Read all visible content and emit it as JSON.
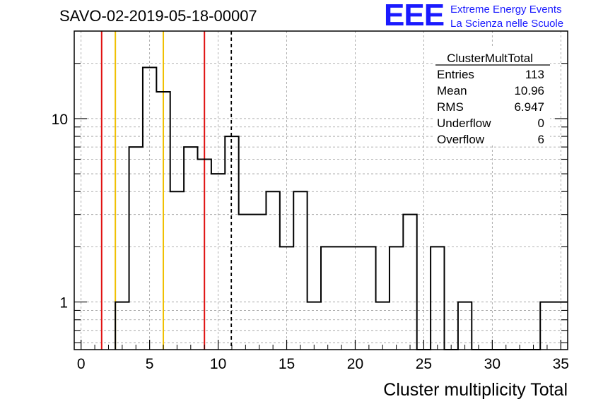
{
  "run_title": "SAVO-02-2019-05-18-00007",
  "logo": {
    "mark": "EEE",
    "line1": "Extreme Energy Events",
    "line2": "La Scienza nelle Scuole",
    "color": "#1a1aff"
  },
  "stats": {
    "title": "ClusterMultTotal",
    "rows": [
      {
        "label": "Entries",
        "value": "113"
      },
      {
        "label": "Mean",
        "value": "10.96"
      },
      {
        "label": "RMS",
        "value": "6.947"
      },
      {
        "label": "Underflow",
        "value": "0"
      },
      {
        "label": "Overflow",
        "value": "6"
      }
    ]
  },
  "chart_data": {
    "type": "bar",
    "style": "step-histogram",
    "xlabel": "Cluster multiplicity Total",
    "ylabel": "",
    "xlim": [
      -0.5,
      35.5
    ],
    "ylim": [
      0.55,
      30
    ],
    "yscale": "log",
    "grid": true,
    "x_ticks": [
      0,
      5,
      10,
      15,
      20,
      25,
      30,
      35
    ],
    "y_ticks": [
      1,
      10
    ],
    "bin_width": 1,
    "bins_left_edges": [
      2.5,
      3.5,
      4.5,
      5.5,
      6.5,
      7.5,
      8.5,
      9.5,
      10.5,
      11.5,
      12.5,
      13.5,
      14.5,
      15.5,
      16.5,
      17.5,
      18.5,
      19.5,
      20.5,
      21.5,
      22.5,
      23.5,
      24.5,
      25.5,
      26.5,
      27.5,
      28.5,
      29.5,
      30.5,
      31.5,
      32.5,
      33.5,
      34.5
    ],
    "values": [
      1,
      7,
      19,
      14,
      4,
      7,
      6,
      5,
      8,
      3,
      3,
      4,
      2,
      4,
      1,
      2,
      2,
      2,
      2,
      1,
      2,
      3,
      0,
      2,
      0,
      1,
      0,
      0,
      0,
      0,
      0,
      1,
      1
    ],
    "vertical_lines": [
      {
        "x": 1.5,
        "color": "#e01010",
        "style": "solid"
      },
      {
        "x": 2.5,
        "color": "#f0c000",
        "style": "solid"
      },
      {
        "x": 6.0,
        "color": "#f0c000",
        "style": "solid"
      },
      {
        "x": 9.0,
        "color": "#e01010",
        "style": "solid"
      },
      {
        "x": 10.96,
        "color": "#000000",
        "style": "dashed"
      }
    ]
  }
}
